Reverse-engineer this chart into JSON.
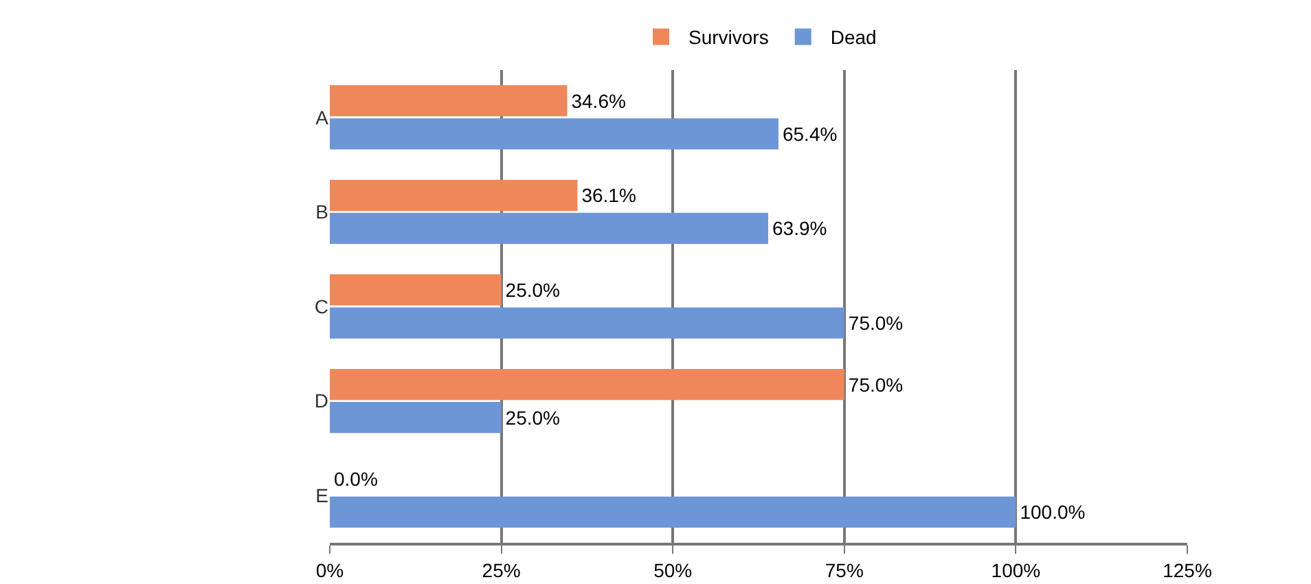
{
  "chart_data": {
    "type": "bar",
    "orientation": "horizontal",
    "categories": [
      "A",
      "B",
      "C",
      "D",
      "E"
    ],
    "series": [
      {
        "name": "Survivors",
        "color": "#f0875a",
        "values": [
          34.6,
          36.1,
          25.0,
          75.0,
          0.0
        ],
        "value_labels": [
          "34.6%",
          "36.1%",
          "25.0%",
          "75.0%",
          "0.0%"
        ]
      },
      {
        "name": "Dead",
        "color": "#6d96d6",
        "values": [
          65.4,
          63.9,
          75.0,
          25.0,
          100.0
        ],
        "value_labels": [
          "65.4%",
          "63.9%",
          "75.0%",
          "25.0%",
          "100.0%"
        ]
      }
    ],
    "xlim": [
      0,
      125
    ],
    "xticks": [
      {
        "value": 0,
        "label": "0%"
      },
      {
        "value": 25,
        "label": "25%"
      },
      {
        "value": 50,
        "label": "50%"
      },
      {
        "value": 75,
        "label": "75%"
      },
      {
        "value": 100,
        "label": "100%"
      },
      {
        "value": 125,
        "label": "125%"
      }
    ],
    "grid": "x",
    "legend": "top"
  }
}
